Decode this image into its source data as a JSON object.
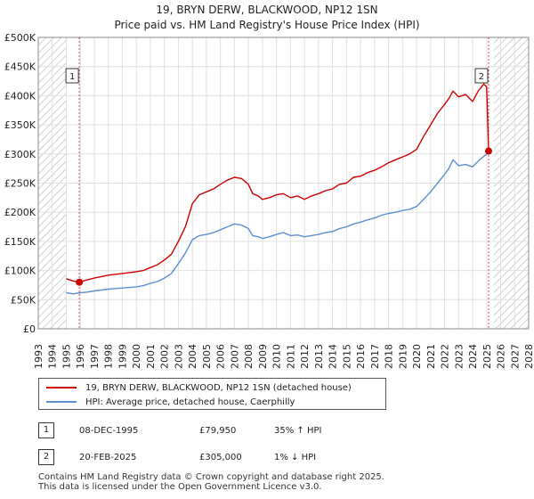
{
  "chart_data": {
    "type": "line",
    "title": "19, BRYN DERW, BLACKWOOD, NP12 1SN",
    "subtitle": "Price paid vs. HM Land Registry's House Price Index (HPI)",
    "xlim": [
      1993,
      2028
    ],
    "ylim": [
      0,
      500000
    ],
    "x_ticks": [
      "1993",
      "1994",
      "1995",
      "1996",
      "1997",
      "1998",
      "1999",
      "2000",
      "2001",
      "2002",
      "2003",
      "2004",
      "2005",
      "2006",
      "2007",
      "2008",
      "2009",
      "2010",
      "2011",
      "2012",
      "2013",
      "2014",
      "2015",
      "2016",
      "2017",
      "2018",
      "2019",
      "2020",
      "2021",
      "2022",
      "2023",
      "2024",
      "2025",
      "2026",
      "2027",
      "2028"
    ],
    "y_ticks": [
      {
        "value": 0,
        "label": "£0"
      },
      {
        "value": 50000,
        "label": "£50K"
      },
      {
        "value": 100000,
        "label": "£100K"
      },
      {
        "value": 150000,
        "label": "£150K"
      },
      {
        "value": 200000,
        "label": "£200K"
      },
      {
        "value": 250000,
        "label": "£250K"
      },
      {
        "value": 300000,
        "label": "£300K"
      },
      {
        "value": 350000,
        "label": "£350K"
      },
      {
        "value": 400000,
        "label": "£400K"
      },
      {
        "value": 450000,
        "label": "£450K"
      },
      {
        "value": 500000,
        "label": "£500K"
      }
    ],
    "grid": true,
    "hatched_regions": [
      [
        1993,
        1995
      ],
      [
        2025.5,
        2028
      ]
    ],
    "series": [
      {
        "name": "19, BRYN DERW, BLACKWOOD, NP12 1SN (detached house)",
        "color": "#cc0000",
        "x": [
          1995.0,
          1995.5,
          1995.93,
          1996.5,
          1997,
          1998,
          1999,
          2000,
          2000.5,
          2001,
          2001.5,
          2002,
          2002.5,
          2003,
          2003.5,
          2004,
          2004.5,
          2005,
          2005.5,
          2006,
          2006.5,
          2007,
          2007.5,
          2008,
          2008.3,
          2008.7,
          2009,
          2009.5,
          2010,
          2010.5,
          2011,
          2011.5,
          2012,
          2012.5,
          2013,
          2013.5,
          2014,
          2014.5,
          2015,
          2015.5,
          2016,
          2016.5,
          2017,
          2017.5,
          2018,
          2018.5,
          2019,
          2019.5,
          2020,
          2020.5,
          2021,
          2021.5,
          2022,
          2022.3,
          2022.6,
          2023,
          2023.5,
          2024,
          2024.4,
          2024.8,
          2025.0,
          2025.14,
          2025.3
        ],
        "y": [
          86000,
          82000,
          79950,
          84000,
          87000,
          92000,
          95000,
          98000,
          100000,
          105000,
          110000,
          118000,
          128000,
          150000,
          175000,
          215000,
          230000,
          235000,
          240000,
          248000,
          255000,
          260000,
          258000,
          248000,
          232000,
          228000,
          222000,
          225000,
          230000,
          232000,
          225000,
          228000,
          222000,
          228000,
          232000,
          237000,
          240000,
          248000,
          250000,
          260000,
          262000,
          268000,
          272000,
          278000,
          285000,
          290000,
          295000,
          300000,
          308000,
          330000,
          350000,
          370000,
          385000,
          395000,
          408000,
          398000,
          402000,
          390000,
          408000,
          420000,
          415000,
          305000,
          302000
        ]
      },
      {
        "name": "HPI: Average price, detached house, Caerphilly",
        "color": "#5b8fcf",
        "x": [
          1995.0,
          1995.5,
          1996,
          1996.5,
          1997,
          1998,
          1999,
          2000,
          2000.5,
          2001,
          2001.5,
          2002,
          2002.5,
          2003,
          2003.5,
          2004,
          2004.5,
          2005,
          2005.5,
          2006,
          2006.5,
          2007,
          2007.5,
          2008,
          2008.3,
          2008.7,
          2009,
          2009.5,
          2010,
          2010.5,
          2011,
          2011.5,
          2012,
          2012.5,
          2013,
          2013.5,
          2014,
          2014.5,
          2015,
          2015.5,
          2016,
          2016.5,
          2017,
          2017.5,
          2018,
          2018.5,
          2019,
          2019.5,
          2020,
          2020.5,
          2021,
          2021.5,
          2022,
          2022.3,
          2022.6,
          2023,
          2023.5,
          2024,
          2024.5,
          2025.0,
          2025.3
        ],
        "y": [
          62000,
          60000,
          62000,
          63000,
          65000,
          68000,
          70000,
          72000,
          74000,
          78000,
          81000,
          87000,
          95000,
          112000,
          130000,
          153000,
          160000,
          162000,
          165000,
          170000,
          175000,
          180000,
          178000,
          172000,
          160000,
          158000,
          155000,
          158000,
          162000,
          165000,
          160000,
          161000,
          158000,
          160000,
          162000,
          165000,
          167000,
          172000,
          175000,
          180000,
          183000,
          187000,
          190000,
          195000,
          198000,
          200000,
          203000,
          205000,
          210000,
          222000,
          235000,
          250000,
          265000,
          275000,
          290000,
          280000,
          282000,
          278000,
          290000,
          300000,
          303000
        ]
      }
    ],
    "annotations": [
      {
        "label": "1",
        "x": 1995.93,
        "y": 79950
      },
      {
        "label": "2",
        "x": 2025.14,
        "y": 305000
      }
    ]
  },
  "legend": {
    "items": [
      {
        "label": "19, BRYN DERW, BLACKWOOD, NP12 1SN (detached house)",
        "color": "#cc0000"
      },
      {
        "label": "HPI: Average price, detached house, Caerphilly",
        "color": "#5b8fcf"
      }
    ]
  },
  "transactions": [
    {
      "badge": "1",
      "date": "08-DEC-1995",
      "price": "£79,950",
      "hpi": "35% ↑ HPI"
    },
    {
      "badge": "2",
      "date": "20-FEB-2025",
      "price": "£305,000",
      "hpi": "1% ↓ HPI"
    }
  ],
  "footer": {
    "line1": "Contains HM Land Registry data © Crown copyright and database right 2025.",
    "line2": "This data is licensed under the Open Government Licence v3.0."
  }
}
